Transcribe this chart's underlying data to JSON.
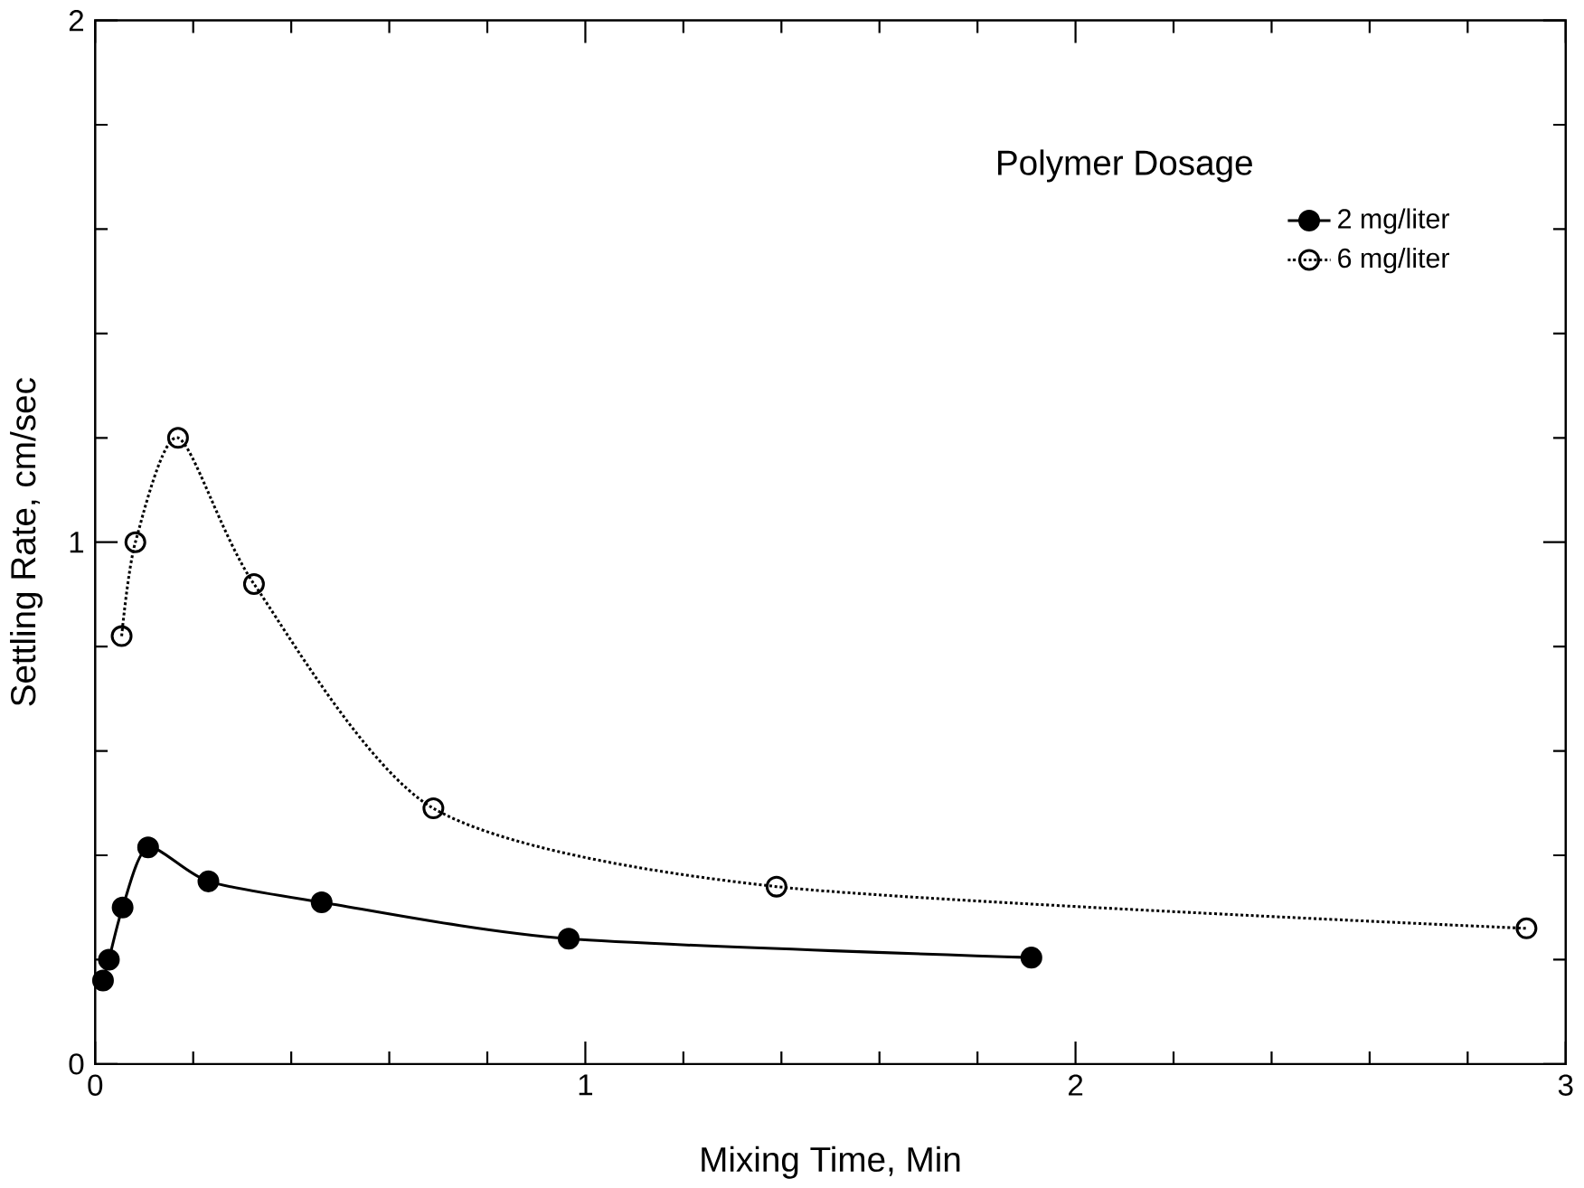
{
  "chart_data": {
    "type": "line",
    "xlabel": "Mixing Time, Min",
    "ylabel": "Settling Rate, cm/sec",
    "legend_title": "Polymer Dosage",
    "legend": "top right",
    "xlim": [
      0,
      3
    ],
    "ylim": [
      0,
      2
    ],
    "xticks": [
      0,
      {
        "value": 0.2,
        "label": null
      },
      {
        "value": 0.4,
        "label": null
      },
      {
        "value": 0.6,
        "label": null
      },
      {
        "value": 0.8,
        "label": null
      },
      1,
      {
        "value": 1.2,
        "label": null
      },
      {
        "value": 1.4,
        "label": null
      },
      {
        "value": 1.6,
        "label": null
      },
      {
        "value": 1.8,
        "label": null
      },
      2,
      {
        "value": 2.2,
        "label": null
      },
      {
        "value": 2.4,
        "label": null
      },
      {
        "value": 2.6,
        "label": null
      },
      {
        "value": 2.8,
        "label": null
      },
      3
    ],
    "yticks": [
      0,
      {
        "value": 0.2,
        "label": null
      },
      {
        "value": 0.4,
        "label": null
      },
      {
        "value": 0.6,
        "label": null
      },
      {
        "value": 0.8,
        "label": null
      },
      1,
      {
        "value": 1.2,
        "label": null
      },
      {
        "value": 1.4,
        "label": null
      },
      {
        "value": 1.6,
        "label": null
      },
      {
        "value": 1.8,
        "label": null
      },
      2
    ],
    "series": [
      {
        "name": "2 mg/liter",
        "color": "#000000",
        "marker": "circle",
        "line_style": "solid",
        "x": [
          0.016,
          0.028,
          0.056,
          0.108,
          0.231,
          0.462,
          0.966,
          1.91
        ],
        "values": [
          0.16,
          0.2,
          0.3,
          0.415,
          0.35,
          0.31,
          0.24,
          0.204
        ]
      },
      {
        "name": "6 mg/liter",
        "color": "#000000",
        "marker": "circle open",
        "line_style": "dotted",
        "x": [
          0.054,
          0.082,
          0.169,
          0.324,
          0.69,
          1.39,
          2.92
        ],
        "values": [
          0.82,
          1.0,
          1.2,
          0.92,
          0.49,
          0.34,
          0.26
        ]
      }
    ]
  }
}
